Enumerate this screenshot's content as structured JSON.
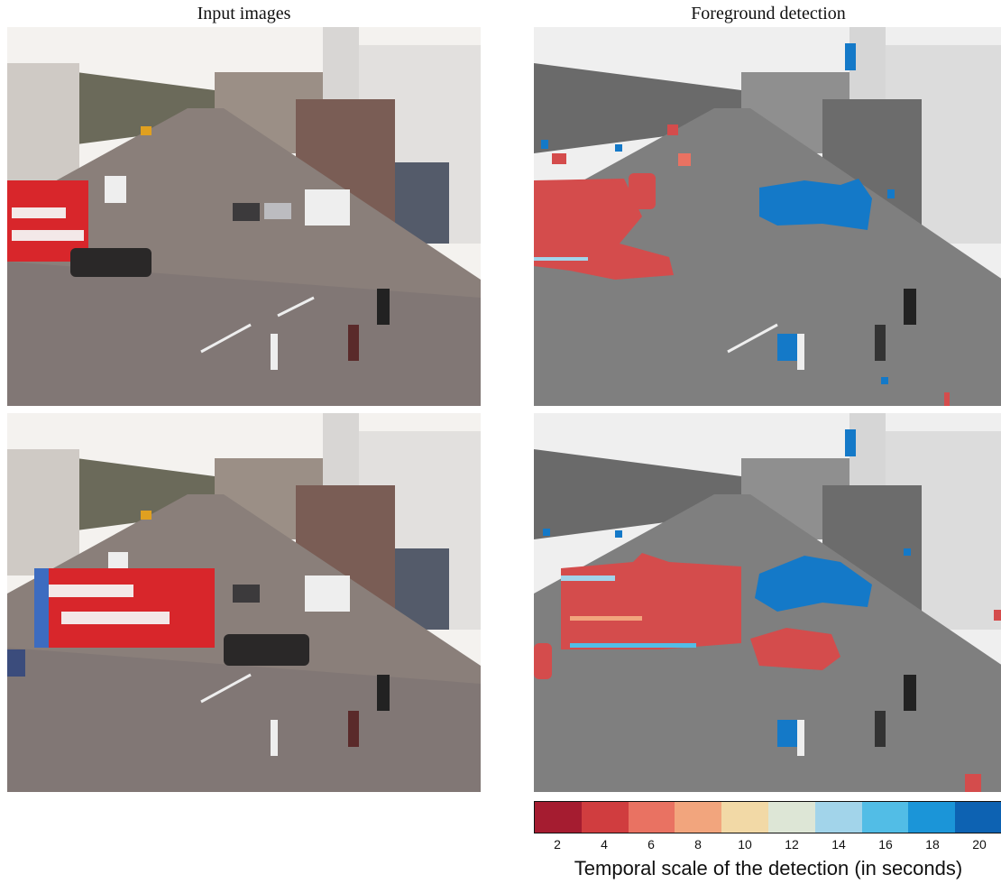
{
  "titles": {
    "left": "Input images",
    "right": "Foreground detection"
  },
  "colorbar": {
    "label": "Temporal scale of the detection (in seconds)",
    "ticks": [
      "2",
      "4",
      "6",
      "8",
      "10",
      "12",
      "14",
      "16",
      "18",
      "20"
    ],
    "colors": [
      "#a51c30",
      "#d03d3f",
      "#e97262",
      "#f2a57d",
      "#f2d9a6",
      "#dde6d6",
      "#a2d4ea",
      "#52bde6",
      "#1b95d8",
      "#0d62b2"
    ]
  },
  "colors": {
    "sky": "#f4f2ef",
    "road": "#8a7f7a",
    "bus_red": "#d8262b",
    "detect_red": "#d44c4c",
    "detect_blue": "#1479c8"
  }
}
